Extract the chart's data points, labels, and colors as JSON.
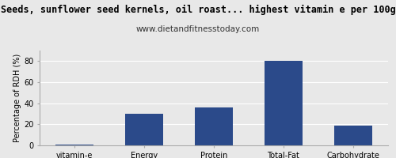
{
  "title": "Seeds, sunflower seed kernels, oil roast... highest vitamin e per 100g",
  "subtitle": "www.dietandfitnesstoday.com",
  "categories": [
    "vitamin-e",
    "Energy",
    "Protein",
    "Total-Fat",
    "Carbohydrate"
  ],
  "values": [
    0.5,
    30,
    36,
    80,
    19
  ],
  "bar_color": "#2b4a8a",
  "ylabel": "Percentage of RDH (%)",
  "ylim": [
    0,
    90
  ],
  "yticks": [
    0,
    20,
    40,
    60,
    80
  ],
  "bg_color": "#e8e8e8",
  "plot_bg_color": "#e8e8e8",
  "title_fontsize": 8.5,
  "subtitle_fontsize": 7.5,
  "ylabel_fontsize": 7.0,
  "tick_fontsize": 7.0,
  "grid_color": "#ffffff"
}
